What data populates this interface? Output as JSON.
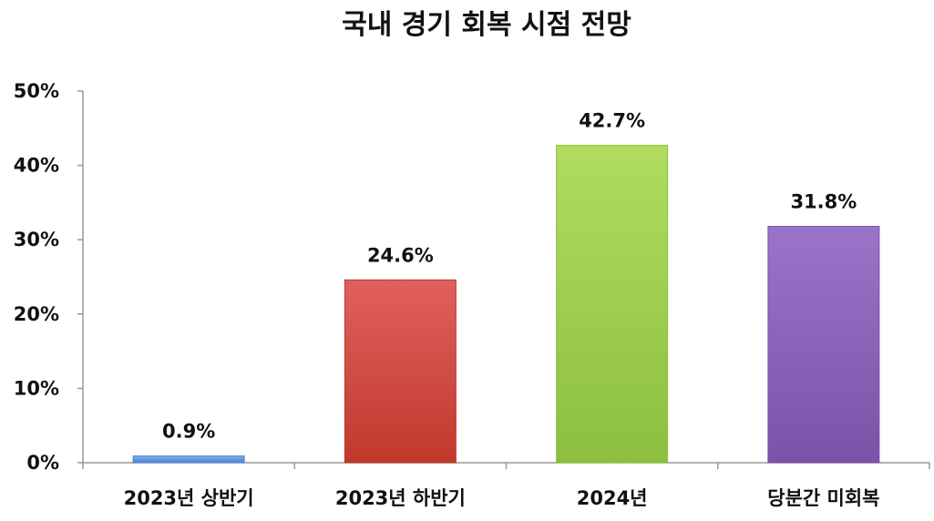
{
  "chart_data": {
    "type": "bar",
    "title": "국내 경기 회복 시점 전망",
    "xlabel": "",
    "ylabel": "",
    "categories": [
      "2023년 상반기",
      "2023년 하반기",
      "2024년",
      "당분간 미회복"
    ],
    "values": [
      0.9,
      24.6,
      42.7,
      31.8
    ],
    "value_labels": [
      "0.9%",
      "24.6%",
      "42.7%",
      "31.8%"
    ],
    "ylim": [
      0,
      50
    ],
    "yticks": [
      0,
      10,
      20,
      30,
      40,
      50
    ],
    "ytick_labels": [
      "0%",
      "10%",
      "20%",
      "30%",
      "40%",
      "50%"
    ],
    "grid": false,
    "legend": "none",
    "colors": [
      "#4a86d0",
      "#c0392b",
      "#8cbf3f",
      "#7a53a8"
    ],
    "colors_light": [
      "#7fb0ea",
      "#e06060",
      "#b0dc60",
      "#9a74c8"
    ]
  }
}
